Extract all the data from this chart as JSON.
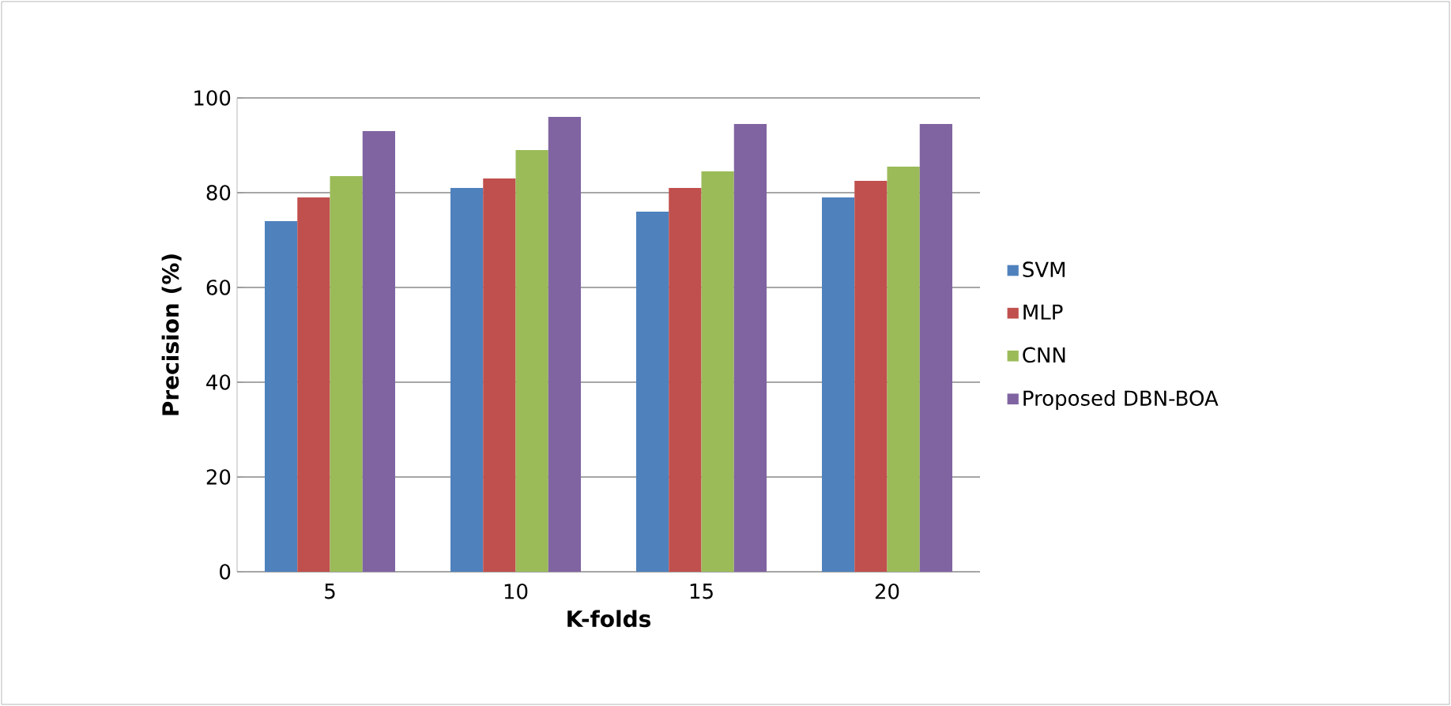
{
  "chart_data": {
    "type": "bar",
    "xlabel": "K-folds",
    "ylabel": "Precision (%)",
    "categories": [
      "5",
      "10",
      "15",
      "20"
    ],
    "series": [
      {
        "name": "SVM",
        "color": "#4f81bd",
        "values": [
          74,
          81,
          76,
          79
        ]
      },
      {
        "name": "MLP",
        "color": "#c0504d",
        "values": [
          79,
          83,
          81,
          82.5
        ]
      },
      {
        "name": "CNN",
        "color": "#9bbb59",
        "values": [
          83.5,
          89,
          84.5,
          85.5
        ]
      },
      {
        "name": "Proposed DBN-BOA",
        "color": "#8064a2",
        "values": [
          93,
          96,
          94.5,
          94.5
        ]
      }
    ],
    "ylim": [
      0,
      100
    ],
    "yticks": [
      0,
      20,
      40,
      60,
      80,
      100
    ],
    "grid": "y",
    "legend": "right"
  }
}
